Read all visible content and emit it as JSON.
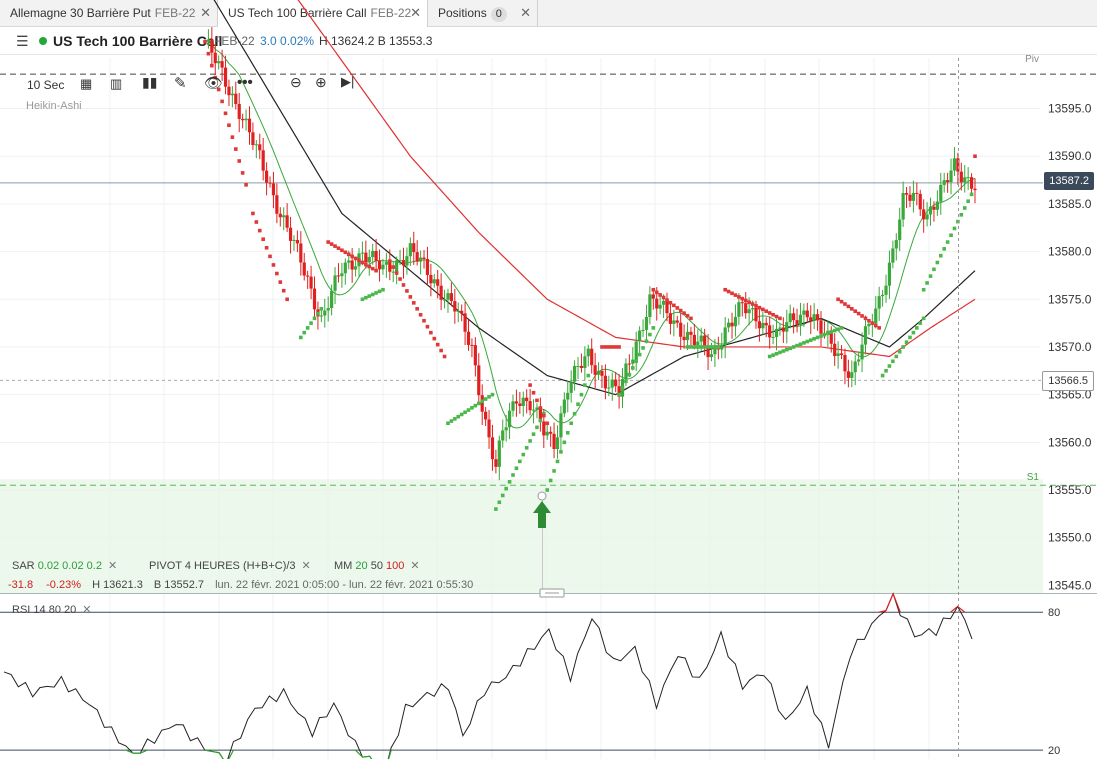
{
  "tabs": [
    {
      "name": "Allemagne 30 Barrière Put",
      "sub": "FEB-22"
    },
    {
      "name": "US Tech 100 Barrière Call",
      "sub": "FEB-22"
    },
    {
      "name": "Positions",
      "badge": "0"
    }
  ],
  "header": {
    "title": "US Tech 100 Barrière Call",
    "expiry": "FEB-22",
    "change": "3.0  0.02%",
    "hb": "H 13624.2  B 13553.3"
  },
  "toolbar": {
    "interval": "10 Sec",
    "chart_type": "Heikin-Ashi"
  },
  "indicators": {
    "sar": {
      "label": "SAR",
      "p1": "0.02",
      "p2": "0.02",
      "p3": "0.2"
    },
    "pivot": {
      "label": "PIVOT",
      "p1": "4 HEURES",
      "p2": "(H+B+C)/3"
    },
    "mm": {
      "label": "MM",
      "p1": "20",
      "p2": "50",
      "p3": "100"
    },
    "stats": {
      "chg": "-31.8",
      "pct": "-0.23%",
      "h": "H 13621.3",
      "b": "B 13552.7",
      "range": "lun. 22 févr. 2021 0:05:00 - lun. 22 févr. 2021 0:55:30"
    },
    "rsi": {
      "label": "RSI",
      "p1": "14",
      "p2": "80",
      "p3": "20"
    }
  },
  "levels": {
    "piv": "Piv",
    "s1": "S1"
  },
  "price_labels": {
    "current": "13587.2",
    "mark": "13566.5"
  },
  "rsi_axis": [
    "80",
    "20"
  ],
  "colors": {
    "up": "#3aa83a",
    "down": "#e02020",
    "ma20": "#3aa83a",
    "ma50": "#222222",
    "ma100": "#e03030",
    "current": "#3a4a5a",
    "arrow": "#2e8b35"
  },
  "chart_data": {
    "type": "candlestick",
    "yaxis_ticks": [
      "13595.0",
      "13590.0",
      "13585.0",
      "13580.0",
      "13575.0",
      "13570.0",
      "13565.0",
      "13560.0",
      "13555.0",
      "13550.0",
      "13545.0"
    ],
    "ylim": [
      13544.2,
      13600.3
    ],
    "current": 13587.2,
    "pivot": 13598.6,
    "s1": 13555.5,
    "mark": 13566.5,
    "path": [
      [
        0,
        13602
      ],
      [
        10,
        13595
      ],
      [
        20,
        13586
      ],
      [
        30,
        13577
      ],
      [
        34,
        13573
      ],
      [
        40,
        13578
      ],
      [
        46,
        13580
      ],
      [
        52,
        13578
      ],
      [
        60,
        13580
      ],
      [
        67,
        13577
      ],
      [
        73,
        13574
      ],
      [
        78,
        13570
      ],
      [
        82,
        13562
      ],
      [
        85,
        13557
      ],
      [
        87,
        13561
      ],
      [
        91,
        13565
      ],
      [
        95,
        13564
      ],
      [
        99,
        13561
      ],
      [
        102,
        13560
      ],
      [
        106,
        13566
      ],
      [
        112,
        13569
      ],
      [
        116,
        13567
      ],
      [
        121,
        13565
      ],
      [
        130,
        13575
      ],
      [
        136,
        13573
      ],
      [
        142,
        13571
      ],
      [
        148,
        13569
      ],
      [
        152,
        13572
      ],
      [
        157,
        13574
      ],
      [
        162,
        13573
      ],
      [
        167,
        13571
      ],
      [
        172,
        13573
      ],
      [
        176,
        13574
      ],
      [
        181,
        13571
      ],
      [
        186,
        13569
      ],
      [
        189,
        13567
      ],
      [
        193,
        13571
      ],
      [
        197,
        13575
      ],
      [
        201,
        13580
      ],
      [
        204,
        13585
      ],
      [
        207,
        13586
      ],
      [
        211,
        13584
      ],
      [
        215,
        13586
      ],
      [
        219,
        13589
      ],
      [
        225,
        13587
      ]
    ],
    "sar_segments": [
      {
        "dir": "up",
        "x0": 0,
        "x1": 12,
        "v0": 13602,
        "v1": 13587
      },
      {
        "dir": "up",
        "x0": 14,
        "x1": 24,
        "v0": 13584,
        "v1": 13575
      },
      {
        "dir": "down",
        "x0": 28,
        "x1": 34,
        "v0": 13571,
        "v1": 13574
      },
      {
        "dir": "up",
        "x0": 36,
        "x1": 50,
        "v0": 13581,
        "v1": 13578
      },
      {
        "dir": "down",
        "x0": 46,
        "x1": 52,
        "v0": 13575,
        "v1": 13576
      },
      {
        "dir": "up",
        "x0": 54,
        "x1": 70,
        "v0": 13579,
        "v1": 13569
      },
      {
        "dir": "down",
        "x0": 71,
        "x1": 84,
        "v0": 13562,
        "v1": 13565
      },
      {
        "dir": "down",
        "x0": 85,
        "x1": 99,
        "v0": 13553,
        "v1": 13563
      },
      {
        "dir": "up",
        "x0": 95,
        "x1": 100,
        "v0": 13566,
        "v1": 13562
      },
      {
        "dir": "down",
        "x0": 100,
        "x1": 112,
        "v0": 13555,
        "v1": 13567
      },
      {
        "dir": "up",
        "x0": 116,
        "x1": 121,
        "v0": 13570,
        "v1": 13570
      },
      {
        "dir": "down",
        "x0": 121,
        "x1": 131,
        "v0": 13565,
        "v1": 13572
      },
      {
        "dir": "up",
        "x0": 131,
        "x1": 142,
        "v0": 13576,
        "v1": 13573
      },
      {
        "dir": "down",
        "x0": 141,
        "x1": 150,
        "v0": 13570,
        "v1": 13570
      },
      {
        "dir": "up",
        "x0": 152,
        "x1": 168,
        "v0": 13576,
        "v1": 13573
      },
      {
        "dir": "down",
        "x0": 165,
        "x1": 186,
        "v0": 13569,
        "v1": 13572
      },
      {
        "dir": "up",
        "x0": 185,
        "x1": 197,
        "v0": 13575,
        "v1": 13572
      },
      {
        "dir": "down",
        "x0": 198,
        "x1": 210,
        "v0": 13567,
        "v1": 13573
      },
      {
        "dir": "down",
        "x0": 210,
        "x1": 224,
        "v0": 13576,
        "v1": 13586
      },
      {
        "dir": "up",
        "x0": 225,
        "x1": 225,
        "v0": 13590,
        "v1": 13590
      }
    ],
    "ma50": [
      [
        0,
        13608
      ],
      [
        20,
        13596
      ],
      [
        40,
        13584
      ],
      [
        60,
        13578
      ],
      [
        80,
        13572
      ],
      [
        100,
        13567
      ],
      [
        120,
        13565
      ],
      [
        140,
        13569
      ],
      [
        160,
        13571
      ],
      [
        180,
        13573
      ],
      [
        200,
        13570
      ],
      [
        210,
        13573
      ],
      [
        225,
        13578
      ]
    ],
    "ma100": [
      [
        0,
        13620
      ],
      [
        40,
        13600
      ],
      [
        60,
        13590
      ],
      [
        80,
        13582
      ],
      [
        100,
        13575
      ],
      [
        120,
        13571
      ],
      [
        140,
        13570
      ],
      [
        160,
        13570
      ],
      [
        180,
        13570
      ],
      [
        200,
        13569
      ],
      [
        212,
        13572
      ],
      [
        225,
        13575
      ]
    ],
    "rsi": {
      "ylim": [
        17,
        84
      ],
      "levels": [
        80,
        20
      ],
      "path": [
        [
          0,
          54
        ],
        [
          8,
          45
        ],
        [
          16,
          50
        ],
        [
          24,
          40
        ],
        [
          30,
          28
        ],
        [
          36,
          18
        ],
        [
          42,
          25
        ],
        [
          48,
          32
        ],
        [
          55,
          22
        ],
        [
          62,
          16
        ],
        [
          70,
          38
        ],
        [
          78,
          45
        ],
        [
          86,
          28
        ],
        [
          92,
          40
        ],
        [
          98,
          22
        ],
        [
          106,
          10
        ],
        [
          112,
          38
        ],
        [
          118,
          44
        ],
        [
          124,
          48
        ],
        [
          128,
          26
        ],
        [
          134,
          46
        ],
        [
          140,
          52
        ],
        [
          146,
          62
        ],
        [
          152,
          72
        ],
        [
          158,
          52
        ],
        [
          164,
          78
        ],
        [
          170,
          58
        ],
        [
          176,
          64
        ],
        [
          182,
          40
        ],
        [
          188,
          62
        ],
        [
          194,
          50
        ],
        [
          200,
          70
        ],
        [
          206,
          48
        ],
        [
          212,
          54
        ],
        [
          218,
          32
        ],
        [
          224,
          46
        ],
        [
          230,
          22
        ],
        [
          236,
          62
        ],
        [
          242,
          74
        ],
        [
          248,
          86
        ],
        [
          254,
          70
        ],
        [
          260,
          72
        ],
        [
          266,
          82
        ],
        [
          270,
          70
        ]
      ]
    }
  }
}
